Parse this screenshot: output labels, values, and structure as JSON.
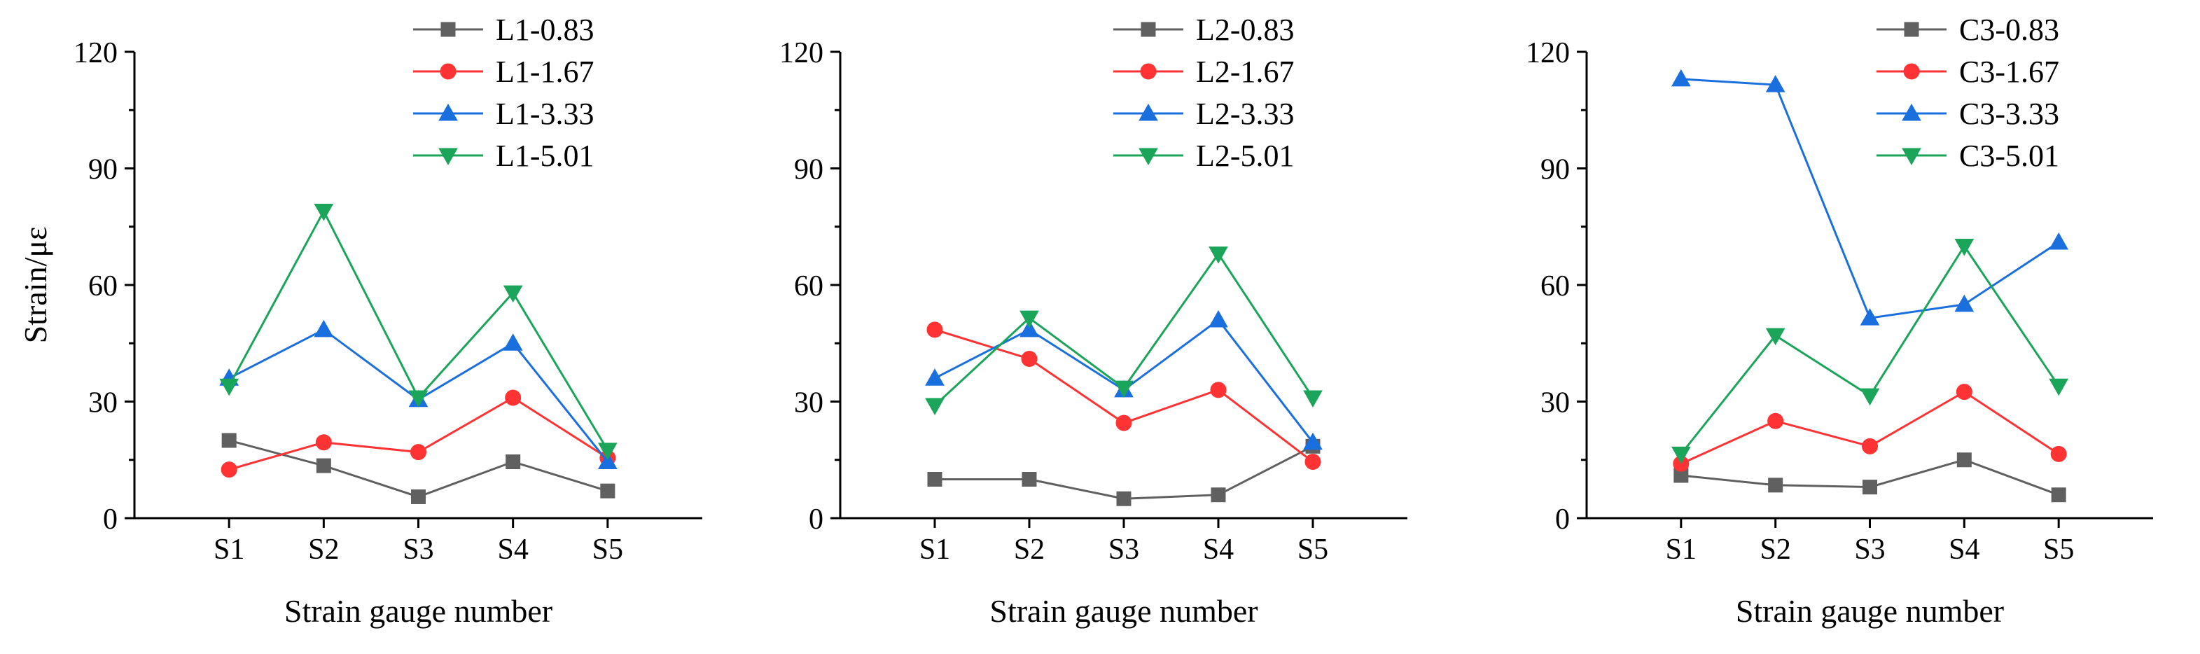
{
  "chart_data": [
    {
      "type": "line",
      "title": "",
      "xlabel": "Strain gauge number",
      "ylabel": "Strain/με",
      "categories": [
        "S1",
        "S2",
        "S3",
        "S4",
        "S5"
      ],
      "ylim": [
        0,
        120
      ],
      "yticks": [
        "0",
        "30",
        "60",
        "90",
        "120"
      ],
      "grid": false,
      "legend": "top-right",
      "series": [
        {
          "name": "L1-0.83",
          "color": "#606060",
          "marker": "square",
          "values": [
            20,
            13.5,
            5.5,
            14.5,
            7
          ]
        },
        {
          "name": "L1-1.67",
          "color": "#ff3333",
          "marker": "circle",
          "values": [
            12.5,
            19.5,
            17,
            31,
            15.5
          ]
        },
        {
          "name": "L1-3.33",
          "color": "#1a6fdf",
          "marker": "triangle-up",
          "values": [
            36,
            48.5,
            30.5,
            45,
            14.5
          ]
        },
        {
          "name": "L1-5.01",
          "color": "#1aa55a",
          "marker": "triangle-down",
          "values": [
            34,
            79,
            31,
            58,
            17.5
          ]
        }
      ]
    },
    {
      "type": "line",
      "title": "",
      "xlabel": "Strain gauge number",
      "ylabel": "",
      "categories": [
        "S1",
        "S2",
        "S3",
        "S4",
        "S5"
      ],
      "ylim": [
        0,
        120
      ],
      "yticks": [
        "0",
        "30",
        "60",
        "90",
        "120"
      ],
      "grid": false,
      "legend": "top-right",
      "series": [
        {
          "name": "L2-0.83",
          "color": "#606060",
          "marker": "square",
          "values": [
            10,
            10,
            5,
            6,
            18.5
          ]
        },
        {
          "name": "L2-1.67",
          "color": "#ff3333",
          "marker": "circle",
          "values": [
            48.5,
            41,
            24.5,
            33,
            14.5
          ]
        },
        {
          "name": "L2-3.33",
          "color": "#1a6fdf",
          "marker": "triangle-up",
          "values": [
            36,
            48.5,
            33,
            51,
            19.5
          ]
        },
        {
          "name": "L2-5.01",
          "color": "#1aa55a",
          "marker": "triangle-down",
          "values": [
            29,
            51.5,
            33.5,
            68,
            31
          ]
        }
      ]
    },
    {
      "type": "line",
      "title": "",
      "xlabel": "Strain gauge number",
      "ylabel": "",
      "categories": [
        "S1",
        "S2",
        "S3",
        "S4",
        "S5"
      ],
      "ylim": [
        0,
        120
      ],
      "yticks": [
        "0",
        "30",
        "60",
        "90",
        "120"
      ],
      "grid": false,
      "legend": "top-right",
      "series": [
        {
          "name": "C3-0.83",
          "color": "#606060",
          "marker": "square",
          "values": [
            11,
            8.5,
            8,
            15,
            6
          ]
        },
        {
          "name": "C3-1.67",
          "color": "#ff3333",
          "marker": "circle",
          "values": [
            14,
            25,
            18.5,
            32.5,
            16.5
          ]
        },
        {
          "name": "C3-3.33",
          "color": "#1a6fdf",
          "marker": "triangle-up",
          "values": [
            113,
            111.5,
            51.5,
            55,
            71
          ]
        },
        {
          "name": "C3-5.01",
          "color": "#1aa55a",
          "marker": "triangle-down",
          "values": [
            16.5,
            47,
            31.5,
            70,
            34
          ]
        }
      ]
    }
  ]
}
